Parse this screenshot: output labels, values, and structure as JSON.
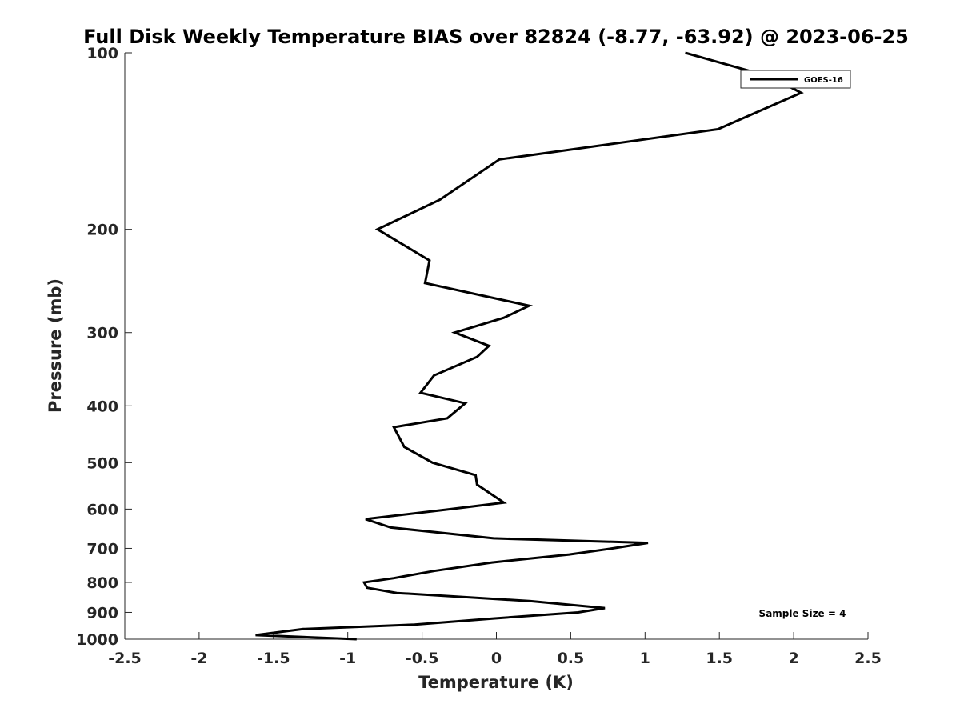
{
  "chart_data": {
    "type": "line",
    "title": "Full Disk Weekly Temperature BIAS over 82824 (-8.77, -63.92) @ 2023-06-25",
    "xlabel": "Temperature (K)",
    "ylabel": "Pressure (mb)",
    "xlim": [
      -2.5,
      2.5
    ],
    "ylim": [
      100,
      1000
    ],
    "y_scale": "log",
    "y_reversed": true,
    "x_ticks": [
      -2.5,
      -2,
      -1.5,
      -1,
      -0.5,
      0,
      0.5,
      1,
      1.5,
      2,
      2.5
    ],
    "x_tick_labels": [
      "-2.5",
      "-2",
      "-1.5",
      "-1",
      "-0.5",
      "0",
      "0.5",
      "1",
      "1.5",
      "2",
      "2.5"
    ],
    "y_ticks": [
      100,
      200,
      300,
      400,
      500,
      600,
      700,
      800,
      900,
      1000
    ],
    "y_tick_labels": [
      "100",
      "200",
      "300",
      "400",
      "500",
      "600",
      "700",
      "800",
      "900",
      "1000"
    ],
    "grid": false,
    "legend_position": "top-right",
    "annotation": "Sample Size = 4",
    "line_color": "#000000",
    "series": [
      {
        "name": "GOES-16",
        "points": [
          {
            "x": 1.27,
            "p": 100
          },
          {
            "x": 1.85,
            "p": 110
          },
          {
            "x": 2.05,
            "p": 117
          },
          {
            "x": 1.49,
            "p": 135
          },
          {
            "x": 0.02,
            "p": 152
          },
          {
            "x": -0.38,
            "p": 178
          },
          {
            "x": -0.8,
            "p": 200
          },
          {
            "x": -0.45,
            "p": 226
          },
          {
            "x": -0.48,
            "p": 247
          },
          {
            "x": 0.22,
            "p": 270
          },
          {
            "x": 0.05,
            "p": 283
          },
          {
            "x": -0.28,
            "p": 300
          },
          {
            "x": -0.05,
            "p": 316
          },
          {
            "x": -0.13,
            "p": 330
          },
          {
            "x": -0.42,
            "p": 355
          },
          {
            "x": -0.51,
            "p": 380
          },
          {
            "x": -0.21,
            "p": 396
          },
          {
            "x": -0.33,
            "p": 420
          },
          {
            "x": -0.69,
            "p": 435
          },
          {
            "x": -0.62,
            "p": 470
          },
          {
            "x": -0.43,
            "p": 500
          },
          {
            "x": -0.14,
            "p": 525
          },
          {
            "x": -0.13,
            "p": 545
          },
          {
            "x": 0.05,
            "p": 585
          },
          {
            "x": -0.33,
            "p": 601
          },
          {
            "x": -0.88,
            "p": 624
          },
          {
            "x": -0.71,
            "p": 645
          },
          {
            "x": -0.02,
            "p": 673
          },
          {
            "x": 1.02,
            "p": 685
          },
          {
            "x": 0.78,
            "p": 700
          },
          {
            "x": 0.49,
            "p": 717
          },
          {
            "x": -0.03,
            "p": 740
          },
          {
            "x": -0.42,
            "p": 765
          },
          {
            "x": -0.69,
            "p": 787
          },
          {
            "x": -0.89,
            "p": 800
          },
          {
            "x": -0.87,
            "p": 817
          },
          {
            "x": -0.67,
            "p": 834
          },
          {
            "x": 0.23,
            "p": 861
          },
          {
            "x": 0.73,
            "p": 885
          },
          {
            "x": 0.55,
            "p": 900
          },
          {
            "x": -0.02,
            "p": 922
          },
          {
            "x": -0.55,
            "p": 944
          },
          {
            "x": -1.3,
            "p": 961
          },
          {
            "x": -1.62,
            "p": 984
          },
          {
            "x": -0.94,
            "p": 1000
          }
        ]
      }
    ]
  }
}
